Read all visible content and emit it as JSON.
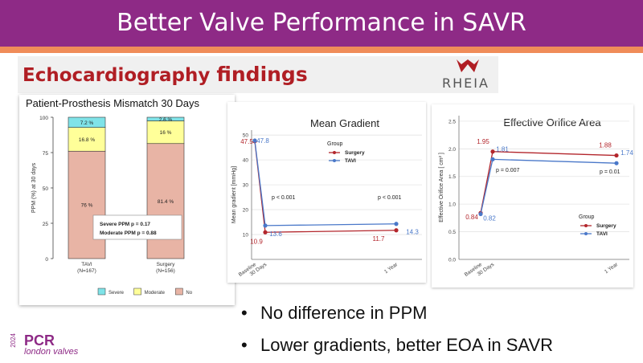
{
  "slide": {
    "title": "Better Valve Performance in SAVR",
    "heading_part1": "Echocardiography",
    "heading_part2": "findings",
    "brand": "RHEIA",
    "bullets": [
      "No difference in PPM",
      "Lower gradients, better EOA in SAVR"
    ],
    "logo": {
      "name": "PCR",
      "year": "2024",
      "sub": "london valves"
    },
    "colors": {
      "banner": "#8e2a86",
      "accent_line": "#f08c59",
      "heading": "#b01e24",
      "surgery": "#b3262c",
      "tavi": "#4a78c9"
    }
  },
  "chart_data": [
    {
      "type": "bar",
      "stacked": true,
      "title": "Patient-Prosthesis Mismatch 30 Days",
      "ylabel": "PPM (%) at 30 days",
      "ylim": [
        0,
        100
      ],
      "yticks": [
        "0",
        "25",
        "50",
        "75",
        "100"
      ],
      "categories": [
        "TAVI\n(N=167)",
        "Surgery\n(N=156)"
      ],
      "category_names": [
        "TAVI",
        "Surgery"
      ],
      "category_ns": [
        "(N=167)",
        "(N=156)"
      ],
      "series": [
        {
          "name": "No",
          "color": "#e8b4a5",
          "values": [
            76,
            81.4
          ],
          "labels": [
            "76 %",
            "81.4 %"
          ]
        },
        {
          "name": "Moderate",
          "color": "#ffff99",
          "values": [
            16.8,
            16
          ],
          "labels": [
            "16.8 %",
            "16 %"
          ]
        },
        {
          "name": "Severe",
          "color": "#7fe3e8",
          "values": [
            7.2,
            2.6
          ],
          "labels": [
            "7.2 %",
            "2.6 %"
          ]
        }
      ],
      "legend_order": [
        "Severe",
        "Moderate",
        "No"
      ],
      "legend": "bottom",
      "annotations": [
        "Severe PPM p = 0.17",
        "Moderate PPM p = 0.88"
      ]
    },
    {
      "type": "line",
      "title": "Mean Gradient",
      "ylabel": "Mean gradient [mmHg]",
      "ylim": [
        0,
        52
      ],
      "yticks": [
        "10",
        "20",
        "30",
        "40",
        "50"
      ],
      "x": [
        "Baseline",
        "30 Days",
        "1 Year"
      ],
      "legend_title": "Group",
      "legend": "top-right",
      "series": [
        {
          "name": "Surgery",
          "color": "#b3262c",
          "values": [
            47.5,
            10.9,
            11.7
          ],
          "labels": [
            "47.5",
            "10.9",
            "11.7"
          ]
        },
        {
          "name": "TAVI",
          "color": "#4a78c9",
          "values": [
            47.8,
            13.6,
            14.3
          ],
          "labels": [
            "47.8",
            "13.6",
            "14.3"
          ]
        }
      ],
      "annotations": [
        "p < 0.001",
        "p < 0.001"
      ]
    },
    {
      "type": "line",
      "title": "Effective Orifice Area",
      "ylabel": "Effective Orifice Area [ cm² ]",
      "ylim": [
        0,
        2.6
      ],
      "yticks": [
        "0.0",
        "0.5",
        "1.0",
        "1.5",
        "2.0",
        "2.5"
      ],
      "x": [
        "Baseline",
        "30 Days",
        "1 Year"
      ],
      "legend_title": "Group",
      "legend": "right",
      "series": [
        {
          "name": "Surgery",
          "color": "#b3262c",
          "values": [
            0.84,
            1.95,
            1.88
          ],
          "labels": [
            "0.84",
            "1.95",
            "1.88"
          ]
        },
        {
          "name": "TAVI",
          "color": "#4a78c9",
          "values": [
            0.82,
            1.81,
            1.74
          ],
          "labels": [
            "0.82",
            "1.81",
            "1.74"
          ]
        }
      ],
      "annotations": [
        "p = 0.007",
        "p = 0.01"
      ]
    }
  ]
}
